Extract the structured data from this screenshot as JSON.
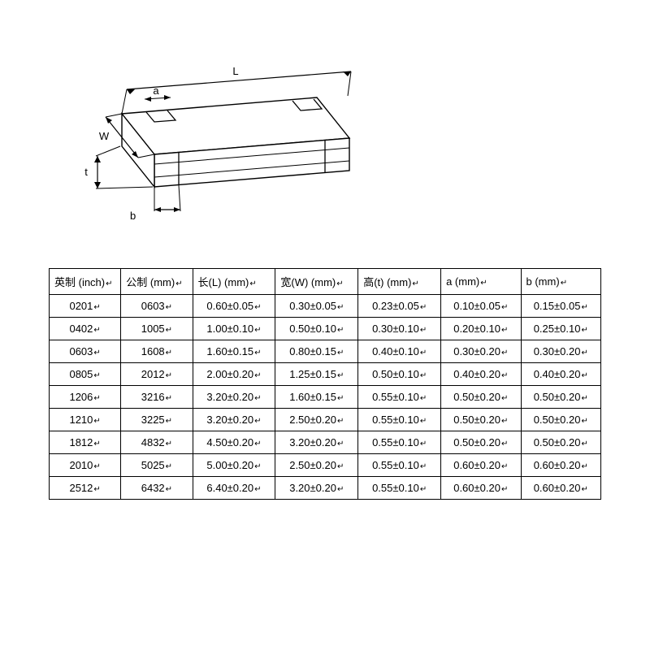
{
  "diagram": {
    "labels": {
      "L": "L",
      "W": "W",
      "t": "t",
      "a": "a",
      "b": "b"
    },
    "stroke": "#000000",
    "stroke_width": 1.4,
    "background": "#ffffff"
  },
  "table": {
    "columns": [
      "英制 (inch)",
      "公制 (mm)",
      "长(L) (mm)",
      "宽(W) (mm)",
      "高(t) (mm)",
      "a (mm)",
      "b (mm)"
    ],
    "rows": [
      [
        "0201",
        "0603",
        "0.60±0.05",
        "0.30±0.05",
        "0.23±0.05",
        "0.10±0.05",
        "0.15±0.05"
      ],
      [
        "0402",
        "1005",
        "1.00±0.10",
        "0.50±0.10",
        "0.30±0.10",
        "0.20±0.10",
        "0.25±0.10"
      ],
      [
        "0603",
        "1608",
        "1.60±0.15",
        "0.80±0.15",
        "0.40±0.10",
        "0.30±0.20",
        "0.30±0.20"
      ],
      [
        "0805",
        "2012",
        "2.00±0.20",
        "1.25±0.15",
        "0.50±0.10",
        "0.40±0.20",
        "0.40±0.20"
      ],
      [
        "1206",
        "3216",
        "3.20±0.20",
        "1.60±0.15",
        "0.55±0.10",
        "0.50±0.20",
        "0.50±0.20"
      ],
      [
        "1210",
        "3225",
        "3.20±0.20",
        "2.50±0.20",
        "0.55±0.10",
        "0.50±0.20",
        "0.50±0.20"
      ],
      [
        "1812",
        "4832",
        "4.50±0.20",
        "3.20±0.20",
        "0.55±0.10",
        "0.50±0.20",
        "0.50±0.20"
      ],
      [
        "2010",
        "5025",
        "5.00±0.20",
        "2.50±0.20",
        "0.55±0.10",
        "0.60±0.20",
        "0.60±0.20"
      ],
      [
        "2512",
        "6432",
        "6.40±0.20",
        "3.20±0.20",
        "0.55±0.10",
        "0.60±0.20",
        "0.60±0.20"
      ]
    ],
    "header_align": "left",
    "cell_align": "center",
    "border_color": "#000000",
    "font_size": 13,
    "column_widths_pct": [
      13,
      13,
      15,
      15,
      15,
      14.5,
      14.5
    ]
  }
}
